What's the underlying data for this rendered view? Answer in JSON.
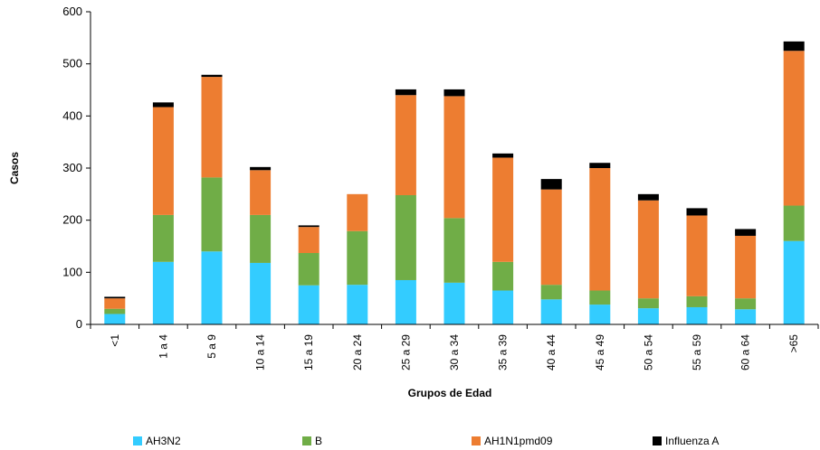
{
  "chart_data": {
    "type": "bar",
    "stacked": true,
    "title": "",
    "xlabel": "Grupos de Edad",
    "ylabel": "Casos",
    "ylim": [
      0,
      600
    ],
    "yticks": [
      "0",
      "100",
      "200",
      "300",
      "400",
      "500",
      "600"
    ],
    "grid": false,
    "legend_position": "bottom",
    "categories": [
      "<1",
      "1 a 4",
      "5 a 9",
      "10 a 14",
      "15 a 19",
      "20 a 24",
      "25 a 29",
      "30 a 34",
      "35 a 39",
      "40 a 44",
      "45 a 49",
      "50 a 54",
      "55 a 59",
      "60 a 64",
      ">65"
    ],
    "series": [
      {
        "name": "AH3N2",
        "color": "#33CCFF",
        "values": [
          20,
          120,
          140,
          118,
          75,
          76,
          85,
          80,
          65,
          48,
          38,
          31,
          33,
          29,
          160
        ]
      },
      {
        "name": "B",
        "color": "#70AD47",
        "values": [
          10,
          90,
          142,
          92,
          62,
          103,
          163,
          124,
          55,
          28,
          27,
          19,
          21,
          21,
          68
        ]
      },
      {
        "name": "AH1N1pmd09",
        "color": "#ED7D31",
        "values": [
          20,
          207,
          193,
          86,
          50,
          71,
          192,
          234,
          200,
          183,
          235,
          188,
          155,
          120,
          297
        ]
      },
      {
        "name": "Influenza A",
        "color": "#000000",
        "values": [
          3,
          9,
          4,
          6,
          3,
          0,
          11,
          13,
          8,
          20,
          10,
          12,
          14,
          13,
          18
        ]
      }
    ]
  }
}
